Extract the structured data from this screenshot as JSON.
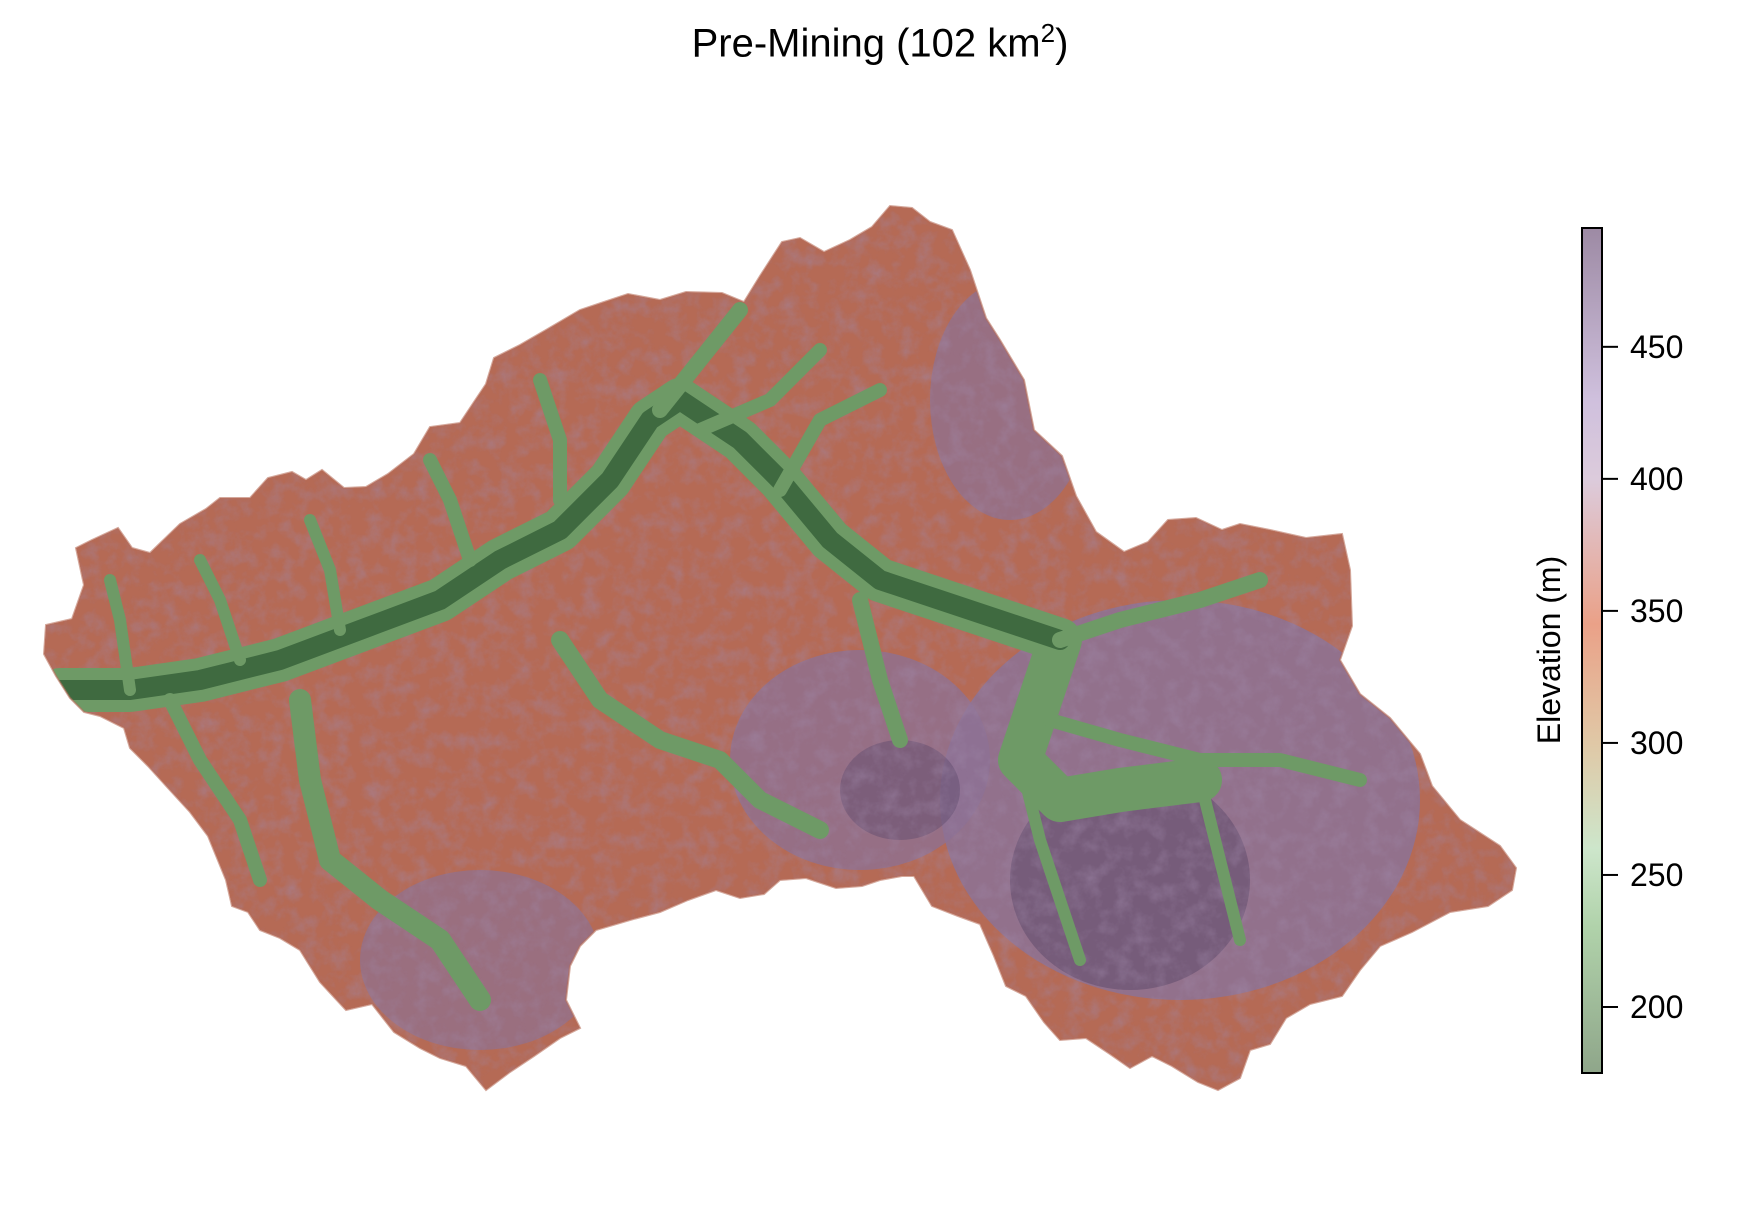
{
  "title": {
    "text": "Pre-Mining (102 km",
    "superscript": "2",
    "suffix": ")"
  },
  "legend": {
    "title": "Elevation (m)",
    "range": [
      175,
      495
    ],
    "ticks": [
      {
        "value": 200,
        "label": "200"
      },
      {
        "value": 250,
        "label": "250"
      },
      {
        "value": 300,
        "label": "300"
      },
      {
        "value": 350,
        "label": "350"
      },
      {
        "value": 400,
        "label": "400"
      },
      {
        "value": 450,
        "label": "450"
      }
    ],
    "color_stops": [
      {
        "value": 175,
        "color": "#8fa68a"
      },
      {
        "value": 230,
        "color": "#b0d2aa"
      },
      {
        "value": 260,
        "color": "#cde6cb"
      },
      {
        "value": 300,
        "color": "#e0c8a6"
      },
      {
        "value": 345,
        "color": "#eaa188"
      },
      {
        "value": 400,
        "color": "#dccbdc"
      },
      {
        "value": 430,
        "color": "#cfc0dd"
      },
      {
        "value": 495,
        "color": "#9d8aa4"
      }
    ]
  },
  "map": {
    "colors": {
      "valley": "#3f6a40",
      "lowland": "#6e9a66",
      "slope": "#b56a55",
      "ridge": "#8c7296",
      "peak": "#5e4a6c"
    }
  }
}
